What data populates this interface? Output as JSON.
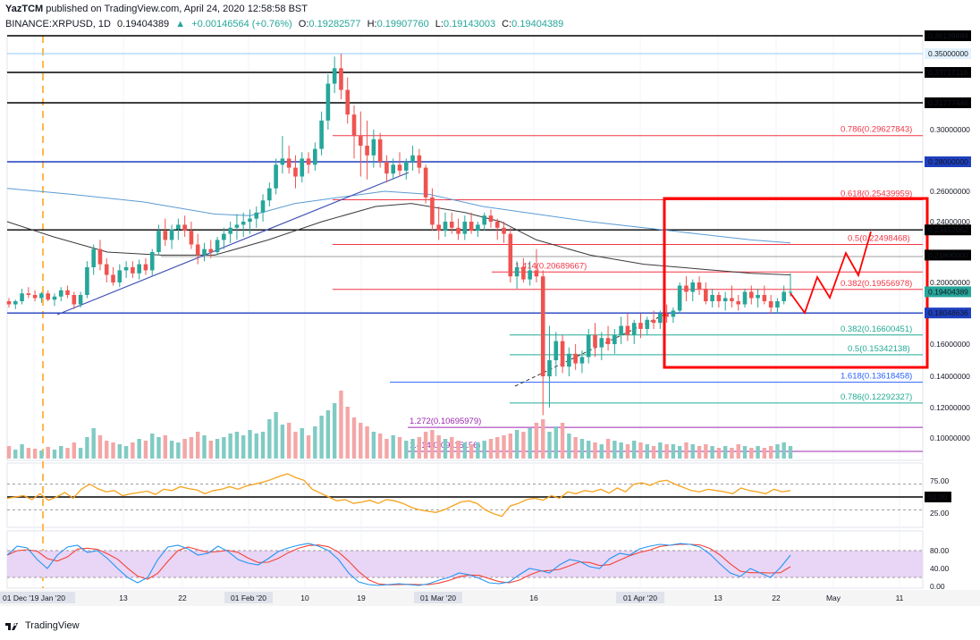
{
  "header": {
    "author": "YazTCM",
    "published": "published on TradingView.com, April 24, 2020 12:58:58 BST",
    "symbol": "BINANCE:XRPUSD, 1D",
    "last": "0.19404389",
    "change": "+0.00146564 (+0.76%)",
    "o_label": "O:",
    "o": "0.19282577",
    "h_label": "H:",
    "h": "0.19907760",
    "l_label": "L:",
    "l": "0.19143003",
    "c_label": "C:",
    "c": "0.19404389"
  },
  "footer": {
    "brand": "TradingView"
  },
  "colors": {
    "bull": "#26a69a",
    "bear": "#ef5350",
    "fib_red": "#f23645",
    "fib_green": "#22ab94",
    "fib_blue": "#2962ff",
    "fib_purple": "#9c27b0",
    "ma_blue": "#5b9bd5",
    "ma_black": "#3a3a3a",
    "box": "#ff0000",
    "rsi": "#f7a21b",
    "stoch_k": "#2196f3",
    "stoch_d": "#f44336"
  },
  "chart_data": {
    "type": "candlestick",
    "y_axis": {
      "ticks": [
        "0.36139684",
        "0.35000000",
        "0.33717116",
        "0.31777446",
        "0.30000000",
        "0.28000000",
        "0.26000000",
        "0.24000000",
        "0.23457062",
        "0.21800000",
        "0.20000000",
        "0.19404389",
        "0.18048636",
        "0.16000000",
        "0.14000000",
        "0.12000000",
        "0.10000000"
      ]
    },
    "x_axis": {
      "ticks": [
        "01 Dec '19 Jan '20",
        "13",
        "22",
        "01 Feb '20",
        "10",
        "19",
        "01 Mar '20",
        "16",
        "01 Apr '20",
        "13",
        "22",
        "May",
        "11"
      ]
    },
    "horizontal_levels": [
      "0.36139684",
      "0.35000000",
      "0.33717116",
      "0.31777446",
      "0.28000000",
      "0.23457062",
      "0.18048636"
    ],
    "fib_labels": [
      {
        "text": "0.786(0.29627843)",
        "color": "red"
      },
      {
        "text": "0.618(0.25439959)",
        "color": "red"
      },
      {
        "text": "0.5(0.22498468)",
        "color": "red"
      },
      {
        "text": "1.414(0.20689667)",
        "color": "red"
      },
      {
        "text": "0.382(0.19556978)",
        "color": "red"
      },
      {
        "text": "0.382(0.16600451)",
        "color": "green"
      },
      {
        "text": "0.5(0.15342138)",
        "color": "green"
      },
      {
        "text": "1.618(0.13618458)",
        "color": "blue"
      },
      {
        "text": "0.786(0.12292327)",
        "color": "green"
      },
      {
        "text": "1.272(0.10695979)",
        "color": "purple"
      },
      {
        "text": "1.414(0.09115156)",
        "color": "purple"
      }
    ],
    "candles": [
      [
        0.188,
        0.19,
        0.184,
        0.186
      ],
      [
        0.186,
        0.189,
        0.183,
        0.188
      ],
      [
        0.188,
        0.196,
        0.186,
        0.193
      ],
      [
        0.193,
        0.197,
        0.19,
        0.192
      ],
      [
        0.192,
        0.195,
        0.188,
        0.19
      ],
      [
        0.19,
        0.194,
        0.187,
        0.193
      ],
      [
        0.193,
        0.195,
        0.188,
        0.189
      ],
      [
        0.189,
        0.193,
        0.185,
        0.191
      ],
      [
        0.191,
        0.197,
        0.188,
        0.195
      ],
      [
        0.195,
        0.198,
        0.19,
        0.192
      ],
      [
        0.192,
        0.194,
        0.183,
        0.186
      ],
      [
        0.186,
        0.194,
        0.184,
        0.192
      ],
      [
        0.192,
        0.214,
        0.19,
        0.21
      ],
      [
        0.21,
        0.225,
        0.205,
        0.222
      ],
      [
        0.222,
        0.228,
        0.208,
        0.212
      ],
      [
        0.212,
        0.216,
        0.2,
        0.205
      ],
      [
        0.205,
        0.21,
        0.198,
        0.2
      ],
      [
        0.2,
        0.212,
        0.197,
        0.208
      ],
      [
        0.208,
        0.214,
        0.203,
        0.21
      ],
      [
        0.21,
        0.214,
        0.203,
        0.206
      ],
      [
        0.206,
        0.215,
        0.202,
        0.212
      ],
      [
        0.212,
        0.216,
        0.205,
        0.208
      ],
      [
        0.208,
        0.222,
        0.204,
        0.22
      ],
      [
        0.22,
        0.238,
        0.218,
        0.234
      ],
      [
        0.234,
        0.242,
        0.224,
        0.228
      ],
      [
        0.228,
        0.238,
        0.222,
        0.235
      ],
      [
        0.235,
        0.242,
        0.228,
        0.238
      ],
      [
        0.238,
        0.244,
        0.23,
        0.234
      ],
      [
        0.234,
        0.24,
        0.222,
        0.225
      ],
      [
        0.225,
        0.232,
        0.212,
        0.218
      ],
      [
        0.218,
        0.226,
        0.214,
        0.222
      ],
      [
        0.222,
        0.228,
        0.216,
        0.22
      ],
      [
        0.22,
        0.23,
        0.218,
        0.228
      ],
      [
        0.228,
        0.236,
        0.222,
        0.232
      ],
      [
        0.232,
        0.24,
        0.226,
        0.236
      ],
      [
        0.236,
        0.245,
        0.228,
        0.238
      ],
      [
        0.238,
        0.246,
        0.23,
        0.24
      ],
      [
        0.24,
        0.248,
        0.232,
        0.242
      ],
      [
        0.242,
        0.25,
        0.236,
        0.246
      ],
      [
        0.246,
        0.258,
        0.24,
        0.254
      ],
      [
        0.254,
        0.266,
        0.25,
        0.262
      ],
      [
        0.262,
        0.282,
        0.258,
        0.278
      ],
      [
        0.278,
        0.296,
        0.272,
        0.282
      ],
      [
        0.282,
        0.29,
        0.272,
        0.276
      ],
      [
        0.276,
        0.284,
        0.262,
        0.27
      ],
      [
        0.27,
        0.286,
        0.266,
        0.282
      ],
      [
        0.282,
        0.286,
        0.272,
        0.278
      ],
      [
        0.278,
        0.292,
        0.274,
        0.288
      ],
      [
        0.288,
        0.312,
        0.284,
        0.306
      ],
      [
        0.306,
        0.336,
        0.3,
        0.33
      ],
      [
        0.33,
        0.348,
        0.324,
        0.34
      ],
      [
        0.34,
        0.35,
        0.32,
        0.326
      ],
      [
        0.326,
        0.334,
        0.304,
        0.31
      ],
      [
        0.31,
        0.316,
        0.282,
        0.296
      ],
      [
        0.296,
        0.312,
        0.27,
        0.29
      ],
      [
        0.29,
        0.306,
        0.268,
        0.284
      ],
      [
        0.284,
        0.3,
        0.276,
        0.294
      ],
      [
        0.294,
        0.298,
        0.276,
        0.28
      ],
      [
        0.28,
        0.284,
        0.266,
        0.272
      ],
      [
        0.272,
        0.282,
        0.268,
        0.278
      ],
      [
        0.278,
        0.286,
        0.27,
        0.274
      ],
      [
        0.274,
        0.282,
        0.268,
        0.28
      ],
      [
        0.28,
        0.29,
        0.274,
        0.284
      ],
      [
        0.284,
        0.288,
        0.272,
        0.276
      ],
      [
        0.276,
        0.278,
        0.252,
        0.256
      ],
      [
        0.256,
        0.262,
        0.234,
        0.238
      ],
      [
        0.238,
        0.25,
        0.228,
        0.234
      ],
      [
        0.234,
        0.246,
        0.23,
        0.24
      ],
      [
        0.24,
        0.246,
        0.232,
        0.236
      ],
      [
        0.236,
        0.242,
        0.228,
        0.232
      ],
      [
        0.232,
        0.244,
        0.228,
        0.24
      ],
      [
        0.24,
        0.246,
        0.232,
        0.234
      ],
      [
        0.234,
        0.24,
        0.23,
        0.238
      ],
      [
        0.238,
        0.246,
        0.234,
        0.244
      ],
      [
        0.244,
        0.248,
        0.236,
        0.24
      ],
      [
        0.24,
        0.242,
        0.228,
        0.236
      ],
      [
        0.236,
        0.24,
        0.226,
        0.232
      ],
      [
        0.232,
        0.236,
        0.2,
        0.204
      ],
      [
        0.204,
        0.214,
        0.196,
        0.21
      ],
      [
        0.21,
        0.216,
        0.2,
        0.202
      ],
      [
        0.202,
        0.214,
        0.198,
        0.208
      ],
      [
        0.208,
        0.222,
        0.2,
        0.204
      ],
      [
        0.204,
        0.208,
        0.115,
        0.14
      ],
      [
        0.14,
        0.172,
        0.12,
        0.15
      ],
      [
        0.15,
        0.168,
        0.14,
        0.162
      ],
      [
        0.162,
        0.166,
        0.142,
        0.146
      ],
      [
        0.146,
        0.158,
        0.14,
        0.154
      ],
      [
        0.154,
        0.16,
        0.144,
        0.148
      ],
      [
        0.148,
        0.156,
        0.142,
        0.152
      ],
      [
        0.152,
        0.17,
        0.148,
        0.166
      ],
      [
        0.166,
        0.174,
        0.152,
        0.158
      ],
      [
        0.158,
        0.168,
        0.15,
        0.164
      ],
      [
        0.164,
        0.172,
        0.156,
        0.16
      ],
      [
        0.16,
        0.17,
        0.154,
        0.166
      ],
      [
        0.166,
        0.178,
        0.16,
        0.172
      ],
      [
        0.172,
        0.18,
        0.162,
        0.166
      ],
      [
        0.166,
        0.176,
        0.16,
        0.174
      ],
      [
        0.174,
        0.18,
        0.164,
        0.17
      ],
      [
        0.17,
        0.178,
        0.166,
        0.176
      ],
      [
        0.176,
        0.182,
        0.17,
        0.174
      ],
      [
        0.174,
        0.182,
        0.17,
        0.18
      ],
      [
        0.18,
        0.186,
        0.174,
        0.178
      ],
      [
        0.178,
        0.184,
        0.174,
        0.182
      ],
      [
        0.182,
        0.2,
        0.18,
        0.198
      ],
      [
        0.198,
        0.204,
        0.188,
        0.194
      ],
      [
        0.194,
        0.202,
        0.188,
        0.2
      ],
      [
        0.2,
        0.204,
        0.192,
        0.196
      ],
      [
        0.196,
        0.2,
        0.186,
        0.188
      ],
      [
        0.188,
        0.196,
        0.184,
        0.192
      ],
      [
        0.192,
        0.194,
        0.184,
        0.188
      ],
      [
        0.188,
        0.194,
        0.182,
        0.19
      ],
      [
        0.19,
        0.198,
        0.184,
        0.188
      ],
      [
        0.188,
        0.192,
        0.182,
        0.186
      ],
      [
        0.186,
        0.196,
        0.184,
        0.194
      ],
      [
        0.194,
        0.198,
        0.186,
        0.19
      ],
      [
        0.19,
        0.196,
        0.184,
        0.192
      ],
      [
        0.192,
        0.198,
        0.186,
        0.188
      ],
      [
        0.188,
        0.192,
        0.18,
        0.184
      ],
      [
        0.184,
        0.19,
        0.18,
        0.188
      ],
      [
        0.188,
        0.198,
        0.186,
        0.194
      ],
      [
        0.194,
        0.206,
        0.191,
        0.194
      ]
    ],
    "volume_ticks": [],
    "rsi": {
      "ticks": [
        "75.00",
        "50.00",
        "25.00"
      ],
      "levels": [
        70,
        50,
        30
      ]
    },
    "stoch": {
      "ticks": [
        "80.00",
        "40.00",
        "0.00"
      ],
      "levels": [
        80,
        20
      ]
    }
  }
}
